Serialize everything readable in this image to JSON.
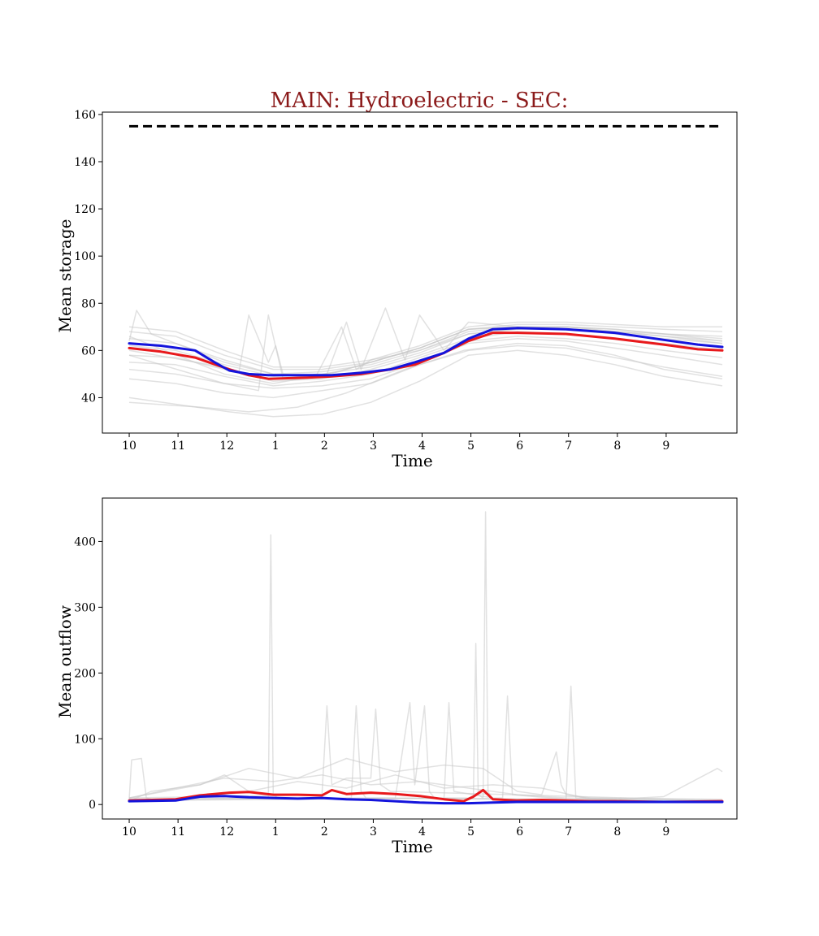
{
  "title": "MAIN: Hydroelectric - SEC:",
  "title_color": "#8b1a1a",
  "colors": {
    "background_lines": "#c8c8c8",
    "red_series": "#e8191c",
    "blue_series": "#1414dc",
    "reference": "#000000"
  },
  "chart_data": [
    {
      "type": "line",
      "xlabel": "Time",
      "ylabel": "Mean storage",
      "xlim": [
        0,
        13
      ],
      "ylim": [
        25,
        161
      ],
      "x_ticks": [
        {
          "v": 0.55,
          "label": "10"
        },
        {
          "v": 1.55,
          "label": "11"
        },
        {
          "v": 2.55,
          "label": "12"
        },
        {
          "v": 3.55,
          "label": "1"
        },
        {
          "v": 4.55,
          "label": "2"
        },
        {
          "v": 5.55,
          "label": "3"
        },
        {
          "v": 6.55,
          "label": "4"
        },
        {
          "v": 7.55,
          "label": "5"
        },
        {
          "v": 8.55,
          "label": "6"
        },
        {
          "v": 9.55,
          "label": "7"
        },
        {
          "v": 10.55,
          "label": "8"
        },
        {
          "v": 11.55,
          "label": "9"
        }
      ],
      "y_ticks": [
        {
          "v": 40,
          "label": "40"
        },
        {
          "v": 60,
          "label": "60"
        },
        {
          "v": 80,
          "label": "80"
        },
        {
          "v": 100,
          "label": "100"
        },
        {
          "v": 120,
          "label": "120"
        },
        {
          "v": 140,
          "label": "140"
        },
        {
          "v": 160,
          "label": "160"
        }
      ],
      "reference_line": {
        "x": [
          0.55,
          12.7
        ],
        "y": 155,
        "style": "dashed"
      },
      "series": [
        {
          "color": "#e8191c",
          "x": [
            0.55,
            1.2,
            1.9,
            2.6,
            3.0,
            3.4,
            4.2,
            4.7,
            5.3,
            5.9,
            6.4,
            7.0,
            7.5,
            8.0,
            8.5,
            9.5,
            10.5,
            11.5,
            12.2,
            12.7
          ],
          "y": [
            61,
            59.5,
            57,
            52,
            49.5,
            48,
            48.5,
            49,
            50,
            52,
            54,
            59,
            64,
            67.5,
            67.5,
            67,
            65,
            62.5,
            60.5,
            60
          ]
        },
        {
          "color": "#1414dc",
          "x": [
            0.55,
            1.2,
            1.9,
            2.3,
            2.6,
            3.0,
            3.4,
            4.2,
            4.7,
            5.3,
            5.9,
            6.4,
            7.0,
            7.5,
            8.0,
            8.5,
            9.5,
            10.5,
            11.5,
            12.2,
            12.7
          ],
          "y": [
            63,
            62,
            60,
            55,
            51.5,
            50,
            49.5,
            49.5,
            49.5,
            50.5,
            52,
            55,
            59,
            65,
            69,
            69.5,
            69,
            67.5,
            64.5,
            62.5,
            61.5
          ]
        }
      ],
      "background_series": [
        {
          "x": [
            0.55,
            2.6,
            3.5,
            4.5,
            5.5,
            6.5,
            7.5,
            8.5,
            9.5,
            10.5,
            11.5,
            12.7
          ],
          "y": [
            40,
            34,
            32,
            33,
            38,
            47,
            58,
            60,
            58,
            54,
            49,
            45
          ]
        },
        {
          "x": [
            0.55,
            2.0,
            3.0,
            4.0,
            5.0,
            6.2,
            7.4,
            8.5,
            9.5,
            10.5,
            11.5,
            12.7
          ],
          "y": [
            38,
            36,
            34,
            36,
            42,
            52,
            60,
            63,
            62,
            58,
            52,
            48
          ]
        },
        {
          "x": [
            0.55,
            1.5,
            2.5,
            3.5,
            4.5,
            5.5,
            6.5,
            7.5,
            8.5,
            9.5,
            10.5,
            11.5,
            12.7
          ],
          "y": [
            48,
            46,
            42,
            40,
            43,
            46,
            54,
            60,
            62,
            61,
            57,
            53,
            49
          ]
        },
        {
          "x": [
            0.55,
            1.5,
            2.5,
            3.5,
            4.5,
            5.5,
            6.5,
            7.5,
            8.5,
            9.5,
            10.5,
            11.5,
            12.7
          ],
          "y": [
            52,
            50,
            46,
            44,
            45,
            48,
            55,
            63,
            65,
            64,
            61,
            58,
            54
          ]
        },
        {
          "x": [
            0.55,
            1.5,
            2.5,
            3.5,
            4.5,
            5.5,
            6.5,
            7.5,
            8.5,
            9.5,
            10.5,
            11.5,
            12.7
          ],
          "y": [
            55,
            54,
            49,
            45,
            47,
            50,
            57,
            64,
            66,
            65,
            63,
            60,
            57
          ]
        },
        {
          "x": [
            0.55,
            1.5,
            2.5,
            3.5,
            4.5,
            5.5,
            6.5,
            7.5,
            8.5,
            9.5,
            10.5,
            11.5,
            12.7
          ],
          "y": [
            58,
            57,
            52,
            47,
            48,
            52,
            58,
            65,
            68,
            67,
            65,
            63,
            60
          ]
        },
        {
          "x": [
            0.55,
            1.5,
            2.5,
            3.5,
            4.5,
            5.5,
            6.5,
            7.5,
            8.5,
            9.5,
            10.5,
            11.5,
            12.7
          ],
          "y": [
            62,
            60,
            54,
            49,
            50,
            53,
            59,
            67,
            69,
            69,
            67,
            65,
            63
          ]
        },
        {
          "x": [
            0.55,
            1.5,
            2.5,
            3.5,
            4.5,
            5.5,
            6.5,
            7.5,
            8.5,
            9.5,
            10.5,
            11.5,
            12.7
          ],
          "y": [
            65,
            63,
            56,
            50,
            51,
            54,
            60,
            68,
            70,
            70,
            69,
            67,
            66
          ]
        },
        {
          "x": [
            0.55,
            1.5,
            2.5,
            3.5,
            4.5,
            5.5,
            6.5,
            7.5,
            8.5,
            9.5,
            10.5,
            11.5,
            12.7
          ],
          "y": [
            68,
            66,
            58,
            52,
            52,
            55,
            61,
            69,
            71,
            71,
            70,
            69,
            68
          ]
        },
        {
          "x": [
            0.55,
            1.5,
            2.5,
            3.5,
            4.5,
            5.5,
            6.5,
            7.5,
            8.5,
            9.5,
            10.5,
            11.5,
            12.7
          ],
          "y": [
            70,
            68,
            60,
            53,
            53,
            56,
            62,
            70,
            72,
            72,
            71,
            70,
            70
          ]
        },
        {
          "x": [
            0.55,
            0.7,
            1.0,
            2.5,
            3.5,
            4.5,
            5.5,
            6.5,
            7.5,
            8.5,
            9.5,
            10.5,
            11.5,
            12.7
          ],
          "y": [
            64,
            77,
            67,
            55,
            50,
            49,
            55,
            61,
            69,
            70,
            70,
            68,
            67,
            64
          ]
        },
        {
          "x": [
            0.55,
            2.2,
            2.8,
            3.0,
            3.4,
            3.55,
            3.7,
            4.3,
            4.8,
            5.5,
            6.5,
            7.5,
            8.5,
            9.5,
            10.5,
            11.5,
            12.7
          ],
          "y": [
            60,
            54,
            51,
            75,
            55,
            62,
            50,
            49,
            51,
            55,
            61,
            69,
            70,
            69,
            68,
            66,
            63
          ]
        },
        {
          "x": [
            0.55,
            2.5,
            3.2,
            3.4,
            3.7,
            4.4,
            4.9,
            5.2,
            5.5,
            6.5,
            7.5,
            8.5,
            9.5,
            10.5,
            11.5,
            12.7
          ],
          "y": [
            58,
            46,
            43,
            75,
            48,
            50,
            70,
            52,
            56,
            60,
            67,
            69,
            70,
            68,
            66,
            64
          ]
        },
        {
          "x": [
            0.55,
            2.5,
            3.5,
            4.6,
            5.0,
            5.3,
            5.8,
            6.2,
            6.5,
            7.0,
            7.5,
            8.5,
            9.5,
            10.5,
            11.5,
            12.7
          ],
          "y": [
            66,
            50,
            46,
            50,
            72,
            52,
            78,
            56,
            75,
            60,
            72,
            70,
            70,
            69,
            67,
            65
          ]
        }
      ]
    },
    {
      "type": "line",
      "xlabel": "Time",
      "ylabel": "Mean outflow",
      "xlim": [
        0,
        13
      ],
      "ylim": [
        -22,
        466
      ],
      "x_ticks": [
        {
          "v": 0.55,
          "label": "10"
        },
        {
          "v": 1.55,
          "label": "11"
        },
        {
          "v": 2.55,
          "label": "12"
        },
        {
          "v": 3.55,
          "label": "1"
        },
        {
          "v": 4.55,
          "label": "2"
        },
        {
          "v": 5.55,
          "label": "3"
        },
        {
          "v": 6.55,
          "label": "4"
        },
        {
          "v": 7.55,
          "label": "5"
        },
        {
          "v": 8.55,
          "label": "6"
        },
        {
          "v": 9.55,
          "label": "7"
        },
        {
          "v": 10.55,
          "label": "8"
        },
        {
          "v": 11.55,
          "label": "9"
        }
      ],
      "y_ticks": [
        {
          "v": 0,
          "label": "0"
        },
        {
          "v": 100,
          "label": "100"
        },
        {
          "v": 200,
          "label": "200"
        },
        {
          "v": 300,
          "label": "300"
        },
        {
          "v": 400,
          "label": "400"
        }
      ],
      "series": [
        {
          "color": "#e8191c",
          "x": [
            0.55,
            1.5,
            2.0,
            2.6,
            3.0,
            3.5,
            4.0,
            4.5,
            4.7,
            5.0,
            5.5,
            6.0,
            6.5,
            7.0,
            7.4,
            7.6,
            7.8,
            8.0,
            8.5,
            9.0,
            9.5,
            10.0,
            10.5,
            11.5,
            12.7
          ],
          "y": [
            6,
            8,
            14,
            18,
            19,
            15,
            15,
            14,
            22,
            16,
            18,
            16,
            13,
            8,
            5,
            12,
            22,
            8,
            6,
            7,
            6,
            5,
            5,
            4,
            5
          ]
        },
        {
          "color": "#1414dc",
          "x": [
            0.55,
            1.5,
            2.0,
            2.5,
            3.0,
            3.5,
            4.0,
            4.5,
            5.0,
            5.5,
            6.0,
            6.5,
            7.0,
            7.5,
            8.0,
            8.5,
            9.0,
            10.0,
            11.0,
            12.7
          ],
          "y": [
            5,
            6,
            12,
            13,
            11,
            10,
            9,
            10,
            8,
            7,
            5,
            3,
            2,
            2,
            3,
            4,
            4,
            4,
            4,
            4
          ]
        }
      ],
      "background_series": [
        {
          "x": [
            0.55,
            3.4,
            3.45,
            3.5,
            3.6,
            5.1,
            5.2,
            5.3,
            5.4,
            12.7
          ],
          "y": [
            8,
            10,
            410,
            15,
            10,
            10,
            150,
            20,
            10,
            5
          ]
        },
        {
          "x": [
            0.55,
            7.6,
            7.65,
            7.7,
            7.8,
            7.85,
            7.9,
            8.0,
            12.7
          ],
          "y": [
            6,
            10,
            245,
            15,
            10,
            445,
            20,
            8,
            5
          ]
        },
        {
          "x": [
            0.55,
            0.6,
            0.8,
            0.9,
            1.0,
            6.0,
            6.3,
            6.4,
            6.6,
            6.7,
            6.8,
            12.7
          ],
          "y": [
            8,
            68,
            70,
            10,
            8,
            10,
            155,
            30,
            150,
            20,
            10,
            5
          ]
        },
        {
          "x": [
            0.55,
            4.5,
            4.6,
            4.7,
            5.0,
            5.5,
            5.6,
            5.7,
            5.9,
            12.7
          ],
          "y": [
            10,
            15,
            150,
            30,
            40,
            40,
            145,
            30,
            20,
            6
          ]
        },
        {
          "x": [
            0.55,
            7.0,
            7.1,
            7.2,
            8.0,
            8.2,
            8.3,
            8.4,
            9.5,
            9.6,
            9.7,
            12.7
          ],
          "y": [
            8,
            10,
            155,
            20,
            10,
            10,
            165,
            15,
            8,
            180,
            10,
            5
          ]
        },
        {
          "x": [
            0.55,
            2.0,
            3.0,
            4.0,
            5.0,
            6.0,
            7.0,
            7.8,
            8.5,
            9.0,
            9.3,
            9.4,
            9.5,
            10.0,
            12.7
          ],
          "y": [
            10,
            30,
            55,
            40,
            70,
            50,
            60,
            55,
            20,
            15,
            80,
            30,
            15,
            10,
            8
          ]
        },
        {
          "x": [
            0.55,
            1.5,
            2.5,
            3.5,
            4.5,
            5.5,
            6.5,
            7.5,
            8.5,
            9.5,
            10.5,
            11.5,
            12.6,
            12.7
          ],
          "y": [
            10,
            25,
            40,
            35,
            45,
            30,
            35,
            25,
            15,
            10,
            8,
            12,
            55,
            50
          ]
        },
        {
          "x": [
            0.55,
            1.0,
            2.0,
            2.5,
            3.0,
            4.0,
            5.0,
            6.0,
            7.0,
            8.0,
            9.0,
            10.0,
            11.0,
            12.7
          ],
          "y": [
            5,
            20,
            30,
            45,
            20,
            35,
            25,
            45,
            25,
            30,
            25,
            8,
            6,
            5
          ]
        }
      ]
    }
  ]
}
